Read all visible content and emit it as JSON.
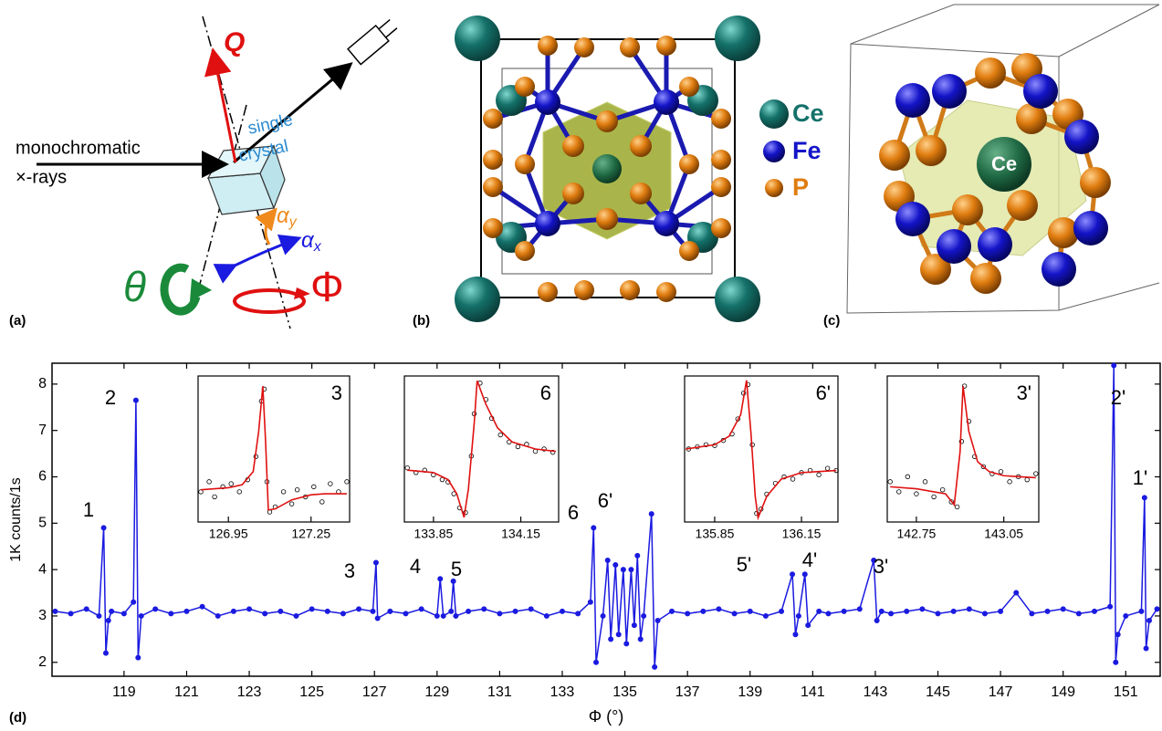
{
  "figure": {
    "panel_a": {
      "label": "(a)",
      "q": "Q",
      "source_line1": "monochromatic",
      "source_line2": "×-rays",
      "sample_line1": "single",
      "sample_line2": "crystal",
      "alpha_y": {
        "symbol": "α",
        "subscript": "y"
      },
      "alpha_x": {
        "symbol": "α",
        "subscript": "x"
      },
      "theta": "θ",
      "phi": "Φ"
    },
    "panel_b": {
      "label": "(b)",
      "legend": [
        "Ce",
        "Fe",
        "P"
      ]
    },
    "panel_c": {
      "label": "(c)",
      "center": "Ce"
    },
    "panel_d": {
      "label": "(d)"
    }
  },
  "chart_data": [
    {
      "type": "line",
      "markers": true,
      "x_label": "Φ (°)",
      "y_label": "1K counts/1s",
      "xlim": [
        116.7,
        152.1
      ],
      "ylim": [
        1.7,
        8.45
      ],
      "xticks": [
        119,
        121,
        123,
        125,
        127,
        129,
        131,
        133,
        135,
        137,
        139,
        141,
        143,
        145,
        147,
        149,
        151
      ],
      "yticks": [
        2,
        3,
        4,
        5,
        6,
        7,
        8
      ],
      "annotations": [
        "1",
        "2",
        "3",
        "4",
        "5",
        "6",
        "6'",
        "5'",
        "4'",
        "3'",
        "2'",
        "1'"
      ],
      "x": [
        116.8,
        117.3,
        117.8,
        118.2,
        118.35,
        118.42,
        118.5,
        118.6,
        119.0,
        119.3,
        119.38,
        119.45,
        119.55,
        120,
        120.5,
        121,
        121.5,
        122,
        122.5,
        123,
        123.5,
        124,
        124.5,
        125,
        125.5,
        126,
        126.5,
        126.95,
        127.05,
        127.1,
        127.5,
        128,
        128.5,
        129.0,
        129.1,
        129.2,
        129.45,
        129.52,
        129.6,
        130,
        130.5,
        131,
        131.5,
        132,
        132.5,
        133,
        133.5,
        133.9,
        134.0,
        134.08,
        134.3,
        134.45,
        134.55,
        134.7,
        134.8,
        134.95,
        135.05,
        135.2,
        135.3,
        135.4,
        135.5,
        135.6,
        135.85,
        135.95,
        136.05,
        136.5,
        137,
        137.5,
        138,
        138.5,
        139,
        139.5,
        140,
        140.35,
        140.45,
        140.55,
        140.75,
        140.85,
        141.2,
        141.5,
        142,
        142.5,
        142.95,
        143.05,
        143.2,
        143.5,
        144,
        144.5,
        145,
        145.5,
        146,
        146.5,
        147,
        147.5,
        148,
        148.5,
        149,
        149.5,
        150,
        150.5,
        150.62,
        150.68,
        150.75,
        151.0,
        151.5,
        151.6,
        151.65,
        151.75,
        152
      ],
      "series": [
        {
          "color": "#1a1ae0",
          "values": [
            3.1,
            3.05,
            3.15,
            3.0,
            4.9,
            2.2,
            2.9,
            3.1,
            3.05,
            3.3,
            7.65,
            2.1,
            3.0,
            3.15,
            3.05,
            3.1,
            3.2,
            3.0,
            3.1,
            3.15,
            3.05,
            3.1,
            3.0,
            3.15,
            3.1,
            3.05,
            3.15,
            3.1,
            4.15,
            2.95,
            3.1,
            3.05,
            3.15,
            3.0,
            3.8,
            3.0,
            3.1,
            3.75,
            3.0,
            3.1,
            3.15,
            3.05,
            3.1,
            3.15,
            3.0,
            3.1,
            3.05,
            3.3,
            4.9,
            2.0,
            3.0,
            4.2,
            2.5,
            4.1,
            2.6,
            4.0,
            2.4,
            4.0,
            2.8,
            4.3,
            2.5,
            3.0,
            5.2,
            1.9,
            2.9,
            3.1,
            3.05,
            3.1,
            3.15,
            3.05,
            3.1,
            3.0,
            3.1,
            3.9,
            2.6,
            3.0,
            3.9,
            2.8,
            3.1,
            3.05,
            3.1,
            3.15,
            4.2,
            2.9,
            3.1,
            3.05,
            3.1,
            3.15,
            3.05,
            3.1,
            3.15,
            3.05,
            3.1,
            3.5,
            3.05,
            3.1,
            3.15,
            3.05,
            3.1,
            3.2,
            8.4,
            2.0,
            2.6,
            3.0,
            3.1,
            5.55,
            2.3,
            2.9,
            3.15
          ]
        }
      ]
    },
    {
      "type": "scatter",
      "label": "3",
      "xlim": [
        126.84,
        127.39
      ],
      "ylim": [
        2.8,
        4.25
      ],
      "xticks": [
        126.95,
        127.25
      ],
      "series": [
        {
          "color": "#000000",
          "style": "points",
          "x": [
            126.85,
            126.88,
            126.9,
            126.93,
            126.96,
            126.99,
            127.02,
            127.05,
            127.07,
            127.08,
            127.09,
            127.1,
            127.12,
            127.15,
            127.18,
            127.2,
            127.23,
            127.26,
            127.29,
            127.32,
            127.35,
            127.38
          ],
          "values": [
            3.1,
            3.2,
            3.05,
            3.15,
            3.18,
            3.1,
            3.22,
            3.45,
            4.0,
            4.12,
            3.2,
            2.9,
            2.95,
            3.1,
            2.98,
            3.12,
            3.05,
            3.15,
            3.0,
            3.18,
            3.1,
            3.2
          ]
        },
        {
          "color": "#e01010",
          "style": "line",
          "x": [
            126.85,
            126.95,
            127.0,
            127.04,
            127.06,
            127.075,
            127.085,
            127.095,
            127.12,
            127.18,
            127.25,
            127.3,
            127.38
          ],
          "values": [
            3.12,
            3.14,
            3.17,
            3.3,
            3.7,
            4.15,
            3.6,
            2.92,
            2.93,
            3.02,
            3.07,
            3.08,
            3.08
          ]
        }
      ]
    },
    {
      "type": "scatter",
      "label": "6",
      "xlim": [
        133.75,
        134.28
      ],
      "ylim": [
        1.9,
        5.0
      ],
      "xticks": [
        133.85,
        134.15
      ],
      "series": [
        {
          "color": "#000000",
          "style": "points",
          "x": [
            133.76,
            133.79,
            133.82,
            133.85,
            133.88,
            133.9,
            133.92,
            133.94,
            133.96,
            133.98,
            133.99,
            134.01,
            134.03,
            134.05,
            134.08,
            134.11,
            134.14,
            134.17,
            134.2,
            134.23,
            134.26
          ],
          "values": [
            3.05,
            2.95,
            3.0,
            2.9,
            2.8,
            2.75,
            2.5,
            2.2,
            2.1,
            3.3,
            4.2,
            4.85,
            4.5,
            4.1,
            3.75,
            3.6,
            3.5,
            3.55,
            3.4,
            3.45,
            3.38
          ]
        },
        {
          "color": "#e01010",
          "style": "line",
          "x": [
            133.76,
            133.85,
            133.9,
            133.93,
            133.955,
            133.97,
            133.99,
            134.0,
            134.03,
            134.07,
            134.12,
            134.2,
            134.27
          ],
          "values": [
            3.0,
            2.95,
            2.8,
            2.5,
            2.0,
            2.6,
            4.0,
            4.9,
            4.4,
            3.9,
            3.6,
            3.45,
            3.4
          ]
        }
      ]
    },
    {
      "type": "scatter",
      "label": "6'",
      "xlim": [
        135.746,
        136.276
      ],
      "ylim": [
        1.9,
        5.3
      ],
      "xticks": [
        135.85,
        136.15
      ],
      "series": [
        {
          "color": "#000000",
          "style": "points",
          "x": [
            135.76,
            135.79,
            135.82,
            135.85,
            135.88,
            135.91,
            135.93,
            135.95,
            135.965,
            135.98,
            135.995,
            136.01,
            136.03,
            136.06,
            136.09,
            136.12,
            136.15,
            136.18,
            136.21,
            136.24,
            136.27
          ],
          "values": [
            3.6,
            3.65,
            3.7,
            3.68,
            3.8,
            3.95,
            4.3,
            4.9,
            5.1,
            3.7,
            2.1,
            2.2,
            2.55,
            2.8,
            2.95,
            2.9,
            3.05,
            3.1,
            3.0,
            3.15,
            3.1
          ]
        },
        {
          "color": "#e01010",
          "style": "line",
          "x": [
            135.75,
            135.85,
            135.9,
            135.94,
            135.96,
            135.975,
            135.99,
            136.0,
            136.03,
            136.08,
            136.15,
            136.27
          ],
          "values": [
            3.6,
            3.7,
            3.9,
            4.4,
            5.2,
            4.0,
            2.5,
            2.0,
            2.5,
            2.9,
            3.05,
            3.1
          ]
        }
      ]
    },
    {
      "type": "scatter",
      "label": "3'",
      "xlim": [
        142.65,
        143.17
      ],
      "ylim": [
        2.8,
        4.25
      ],
      "xticks": [
        142.75,
        143.05
      ],
      "series": [
        {
          "color": "#000000",
          "style": "points",
          "x": [
            142.66,
            142.69,
            142.72,
            142.75,
            142.78,
            142.81,
            142.84,
            142.87,
            142.89,
            142.905,
            142.915,
            142.93,
            142.95,
            142.98,
            143.01,
            143.04,
            143.07,
            143.1,
            143.13,
            143.16
          ],
          "values": [
            3.2,
            3.1,
            3.25,
            3.08,
            3.2,
            3.05,
            3.12,
            3.0,
            2.95,
            3.6,
            4.15,
            3.8,
            3.45,
            3.35,
            3.28,
            3.3,
            3.2,
            3.25,
            3.22,
            3.28
          ]
        },
        {
          "color": "#e01010",
          "style": "line",
          "x": [
            142.66,
            142.75,
            142.85,
            142.88,
            142.9,
            142.91,
            142.93,
            142.96,
            143.0,
            143.05,
            143.1,
            143.16
          ],
          "values": [
            3.15,
            3.13,
            3.08,
            2.97,
            3.5,
            4.15,
            3.7,
            3.4,
            3.3,
            3.26,
            3.25,
            3.24
          ]
        }
      ]
    }
  ]
}
